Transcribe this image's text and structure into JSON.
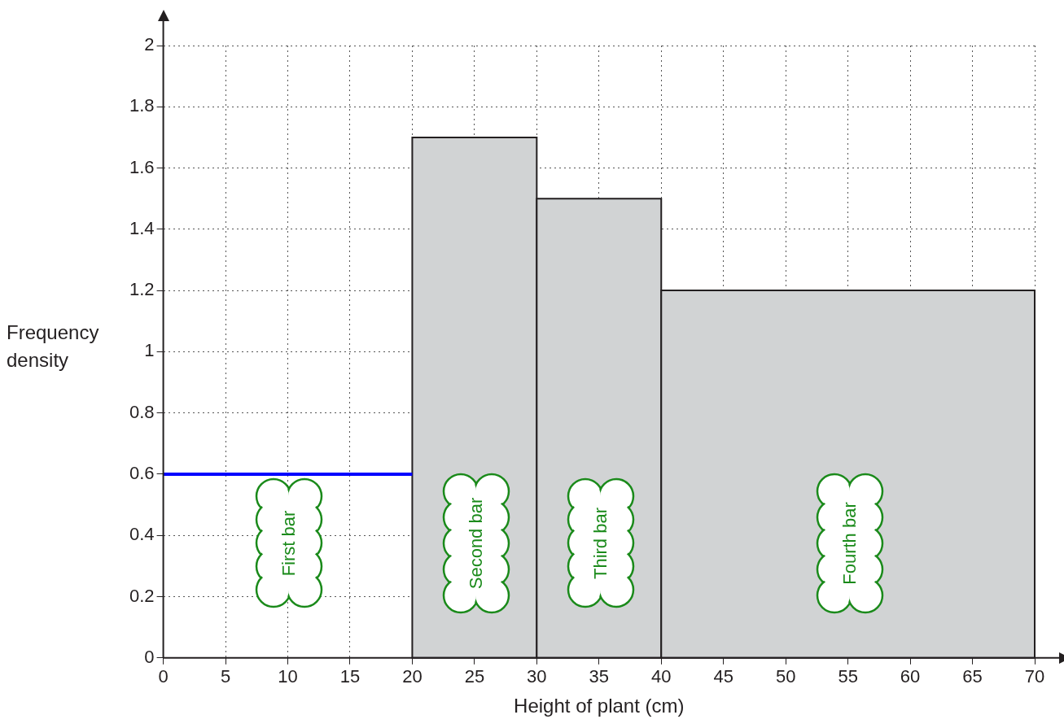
{
  "chart_data": {
    "type": "histogram",
    "xlabel": "Height of plant (cm)",
    "ylabel": "Frequency density",
    "bins": [
      20,
      30,
      40,
      70
    ],
    "series": [
      {
        "values": [
          1.7,
          1.5,
          1.2
        ],
        "color": "#d1d3d4"
      },
      {
        "type": "line",
        "x": [
          0,
          20
        ],
        "values": [
          0.6,
          0.6
        ],
        "color": "#0000ff"
      }
    ],
    "xlim": [
      0,
      70
    ],
    "xticks": [
      0,
      5,
      10,
      15,
      20,
      25,
      30,
      35,
      40,
      45,
      50,
      55,
      60,
      65,
      70
    ],
    "ylim": [
      0,
      2
    ],
    "yticks": [
      0,
      0.2,
      0.4,
      0.6,
      0.8,
      1,
      1.2,
      1.4,
      1.6,
      1.8,
      2
    ],
    "grid": true,
    "annotations": [
      "First bar",
      "Second bar",
      "Third bar",
      "Fourth bar"
    ]
  }
}
